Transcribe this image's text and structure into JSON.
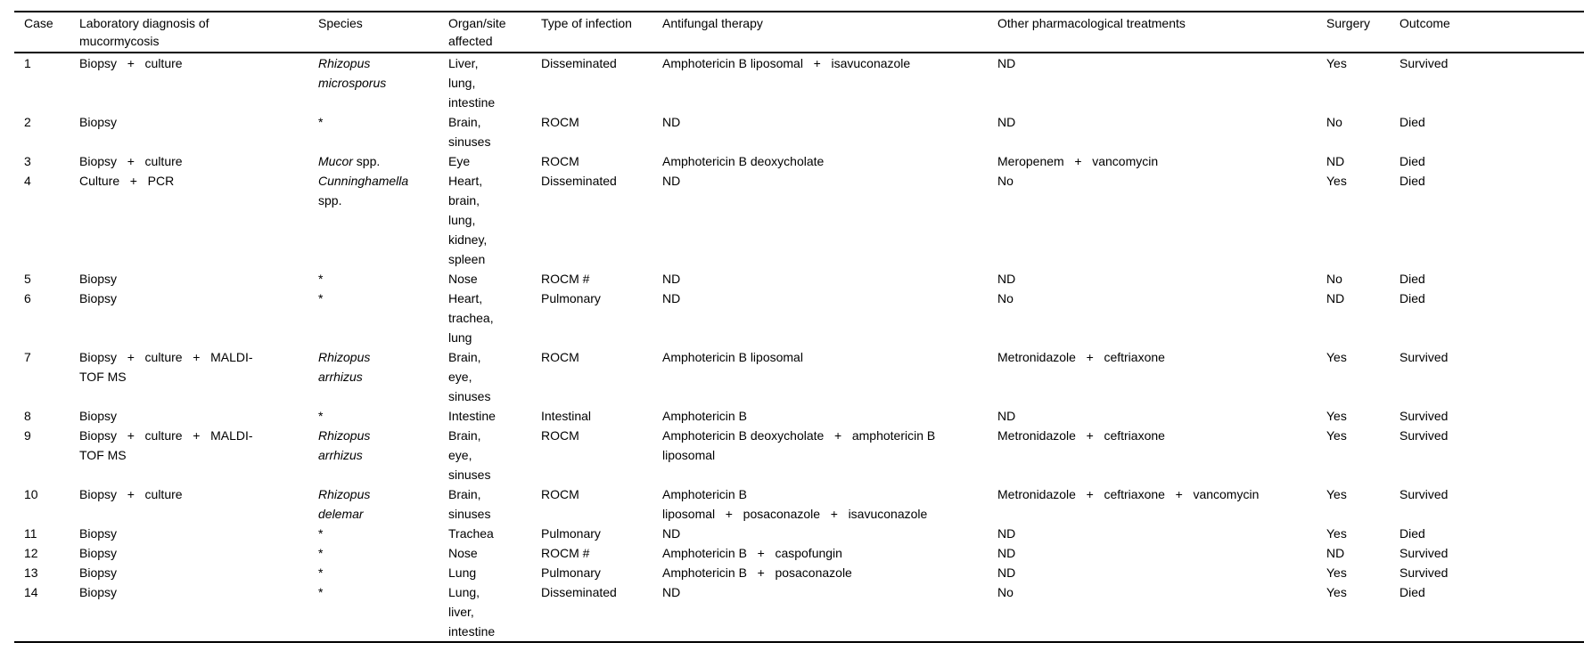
{
  "page": {
    "background_color": "#ffffff",
    "text_color": "#000000",
    "rule_color": "#000000"
  },
  "table": {
    "columns": [
      {
        "key": "case",
        "label": "Case"
      },
      {
        "key": "diagnosis",
        "label": "Laboratory diagnosis of\nmucormycosis"
      },
      {
        "key": "species",
        "label": "Species"
      },
      {
        "key": "organ",
        "label": "Organ/site\naffected"
      },
      {
        "key": "infection",
        "label": "Type of infection"
      },
      {
        "key": "antifungal",
        "label": "Antifungal therapy"
      },
      {
        "key": "other",
        "label": "Other pharmacological treatments"
      },
      {
        "key": "surgery",
        "label": "Surgery"
      },
      {
        "key": "outcome",
        "label": "Outcome"
      }
    ],
    "rows": [
      {
        "case": "1",
        "diagnosis": "Biopsy   +   culture",
        "species_italic": "Rhizopus\nmicrosporus",
        "species_roman": "",
        "organ": "Liver,\nlung,\nintestine",
        "infection": "Disseminated",
        "antifungal": "Amphotericin B liposomal   +   isavuconazole",
        "other": "ND",
        "surgery": "Yes",
        "outcome": "Survived"
      },
      {
        "case": "2",
        "diagnosis": "Biopsy",
        "species_italic": "",
        "species_roman": "*",
        "organ": "Brain,\nsinuses",
        "infection": "ROCM",
        "antifungal": "ND",
        "other": "ND",
        "surgery": "No",
        "outcome": "Died"
      },
      {
        "case": "3",
        "diagnosis": "Biopsy   +   culture",
        "species_italic": "Mucor",
        "species_roman": " spp.",
        "organ": "Eye",
        "infection": "ROCM",
        "antifungal": "Amphotericin B deoxycholate",
        "other": "Meropenem   +   vancomycin",
        "surgery": "ND",
        "outcome": "Died"
      },
      {
        "case": "4",
        "diagnosis": "Culture   +   PCR",
        "species_italic": "Cunninghamella",
        "species_roman": "\nspp.",
        "organ": "Heart,\nbrain,\nlung,\nkidney,\nspleen",
        "infection": "Disseminated",
        "antifungal": "ND",
        "other": "No",
        "surgery": "Yes",
        "outcome": "Died"
      },
      {
        "case": "5",
        "diagnosis": "Biopsy",
        "species_italic": "",
        "species_roman": "*",
        "organ": "Nose",
        "infection": "ROCM #",
        "antifungal": "ND",
        "other": "ND",
        "surgery": "No",
        "outcome": "Died"
      },
      {
        "case": "6",
        "diagnosis": "Biopsy",
        "species_italic": "",
        "species_roman": "*",
        "organ": "Heart,\ntrachea,\nlung",
        "infection": "Pulmonary",
        "antifungal": "ND",
        "other": "No",
        "surgery": "ND",
        "outcome": "Died"
      },
      {
        "case": "7",
        "diagnosis": "Biopsy   +   culture   +   MALDI-\nTOF MS",
        "species_italic": "Rhizopus\narrhizus",
        "species_roman": "",
        "organ": "Brain,\neye,\nsinuses",
        "infection": "ROCM",
        "antifungal": "Amphotericin B liposomal",
        "other": "Metronidazole   +   ceftriaxone",
        "surgery": "Yes",
        "outcome": "Survived"
      },
      {
        "case": "8",
        "diagnosis": "Biopsy",
        "species_italic": "",
        "species_roman": "*",
        "organ": "Intestine",
        "infection": "Intestinal",
        "antifungal": "Amphotericin B",
        "other": "ND",
        "surgery": "Yes",
        "outcome": "Survived"
      },
      {
        "case": "9",
        "diagnosis": "Biopsy   +   culture   +   MALDI-\nTOF MS",
        "species_italic": "Rhizopus\narrhizus",
        "species_roman": "",
        "organ": "Brain,\neye,\nsinuses",
        "infection": "ROCM",
        "antifungal": "Amphotericin B deoxycholate   +   amphotericin B\nliposomal",
        "other": "Metronidazole   +   ceftriaxone",
        "surgery": "Yes",
        "outcome": "Survived"
      },
      {
        "case": "10",
        "diagnosis": "Biopsy   +   culture",
        "species_italic": "Rhizopus\ndelemar",
        "species_roman": "",
        "organ": "Brain,\nsinuses",
        "infection": "ROCM",
        "antifungal": "Amphotericin B\nliposomal   +   posaconazole   +   isavuconazole",
        "other": "Metronidazole   +   ceftriaxone   +   vancomycin",
        "surgery": "Yes",
        "outcome": "Survived"
      },
      {
        "case": "11",
        "diagnosis": "Biopsy",
        "species_italic": "",
        "species_roman": "*",
        "organ": "Trachea",
        "infection": "Pulmonary",
        "antifungal": "ND",
        "other": "ND",
        "surgery": "Yes",
        "outcome": "Died"
      },
      {
        "case": "12",
        "diagnosis": "Biopsy",
        "species_italic": "",
        "species_roman": "*",
        "organ": "Nose",
        "infection": "ROCM #",
        "antifungal": "Amphotericin B   +   caspofungin",
        "other": "ND",
        "surgery": "ND",
        "outcome": "Survived"
      },
      {
        "case": "13",
        "diagnosis": "Biopsy",
        "species_italic": "",
        "species_roman": "*",
        "organ": "Lung",
        "infection": "Pulmonary",
        "antifungal": "Amphotericin B   +   posaconazole",
        "other": "ND",
        "surgery": "Yes",
        "outcome": "Survived"
      },
      {
        "case": "14",
        "diagnosis": "Biopsy",
        "species_italic": "",
        "species_roman": "*",
        "organ": "Lung,\nliver,\nintestine",
        "infection": "Disseminated",
        "antifungal": "ND",
        "other": "No",
        "surgery": "Yes",
        "outcome": "Died"
      }
    ]
  }
}
